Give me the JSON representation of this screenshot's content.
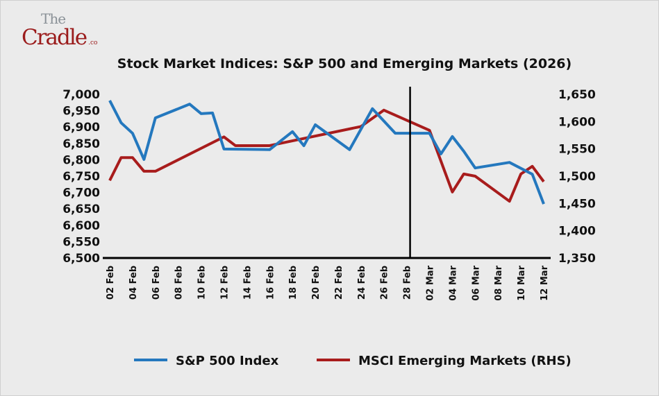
{
  "logo": {
    "line1": "The",
    "line2": "Cradle",
    "suffix": ".co"
  },
  "chart_data": {
    "type": "line",
    "title": "Stock Market Indices: S&P 500 and Emerging Markets (2026)",
    "x_unit": "days since 02 Feb 2026",
    "x_ticks": [
      {
        "x": 0,
        "label": "02 Feb"
      },
      {
        "x": 2,
        "label": "04 Feb"
      },
      {
        "x": 4,
        "label": "06 Feb"
      },
      {
        "x": 6,
        "label": "08 Feb"
      },
      {
        "x": 8,
        "label": "10 Feb"
      },
      {
        "x": 10,
        "label": "12 Feb"
      },
      {
        "x": 12,
        "label": "14 Feb"
      },
      {
        "x": 14,
        "label": "16 Feb"
      },
      {
        "x": 16,
        "label": "18 Feb"
      },
      {
        "x": 18,
        "label": "20 Feb"
      },
      {
        "x": 20,
        "label": "22 Feb"
      },
      {
        "x": 22,
        "label": "24 Feb"
      },
      {
        "x": 24,
        "label": "26 Feb"
      },
      {
        "x": 26,
        "label": "28 Feb"
      },
      {
        "x": 28,
        "label": "02 Mar"
      },
      {
        "x": 30,
        "label": "04 Mar"
      },
      {
        "x": 32,
        "label": "06 Mar"
      },
      {
        "x": 34,
        "label": "08 Mar"
      },
      {
        "x": 36,
        "label": "10 Mar"
      },
      {
        "x": 38,
        "label": "12 Mar"
      }
    ],
    "xlim": [
      0,
      38
    ],
    "y_left": {
      "ylim": [
        6500,
        7000
      ],
      "ticks": [
        "7,000",
        "6,950",
        "6,900",
        "6,850",
        "6,800",
        "6,750",
        "6,700",
        "6,650",
        "6,600",
        "6,550",
        "6,500"
      ],
      "tick_values": [
        7000,
        6950,
        6900,
        6850,
        6800,
        6750,
        6700,
        6650,
        6600,
        6550,
        6500
      ]
    },
    "y_right": {
      "ylim": [
        1350,
        1650
      ],
      "ticks": [
        "1,650",
        "1,600",
        "1,550",
        "1,500",
        "1,450",
        "1,400",
        "1,350"
      ],
      "tick_values": [
        1650,
        1600,
        1550,
        1500,
        1450,
        1400,
        1350
      ]
    },
    "vertical_marker_x": 26.3,
    "grid": false,
    "legend_position": "bottom",
    "series": [
      {
        "name": "S&P 500 Index",
        "axis": "left",
        "color": "#2478be",
        "x": [
          0,
          1,
          2,
          3,
          4,
          7,
          8,
          9,
          10,
          14,
          16,
          17,
          18,
          21,
          23,
          25,
          28,
          29,
          30,
          31,
          32,
          35,
          37,
          38
        ],
        "y": [
          6981,
          6913,
          6881,
          6801,
          6928,
          6970,
          6941,
          6943,
          6833,
          6831,
          6886,
          6843,
          6907,
          6831,
          6956,
          6881,
          6881,
          6818,
          6871,
          6826,
          6775,
          6792,
          6756,
          6665
        ]
      },
      {
        "name": "MSCI Emerging Markets (RHS)",
        "axis": "right",
        "color": "#a81c1c",
        "x": [
          0,
          1,
          2,
          3,
          4,
          10,
          11,
          14,
          22,
          24,
          28,
          30,
          31,
          32,
          35,
          36,
          37,
          38
        ],
        "y": [
          1492,
          1534,
          1534,
          1509,
          1509,
          1572,
          1556,
          1556,
          1591,
          1621,
          1584,
          1471,
          1504,
          1500,
          1454,
          1504,
          1518,
          1490
        ]
      }
    ]
  }
}
